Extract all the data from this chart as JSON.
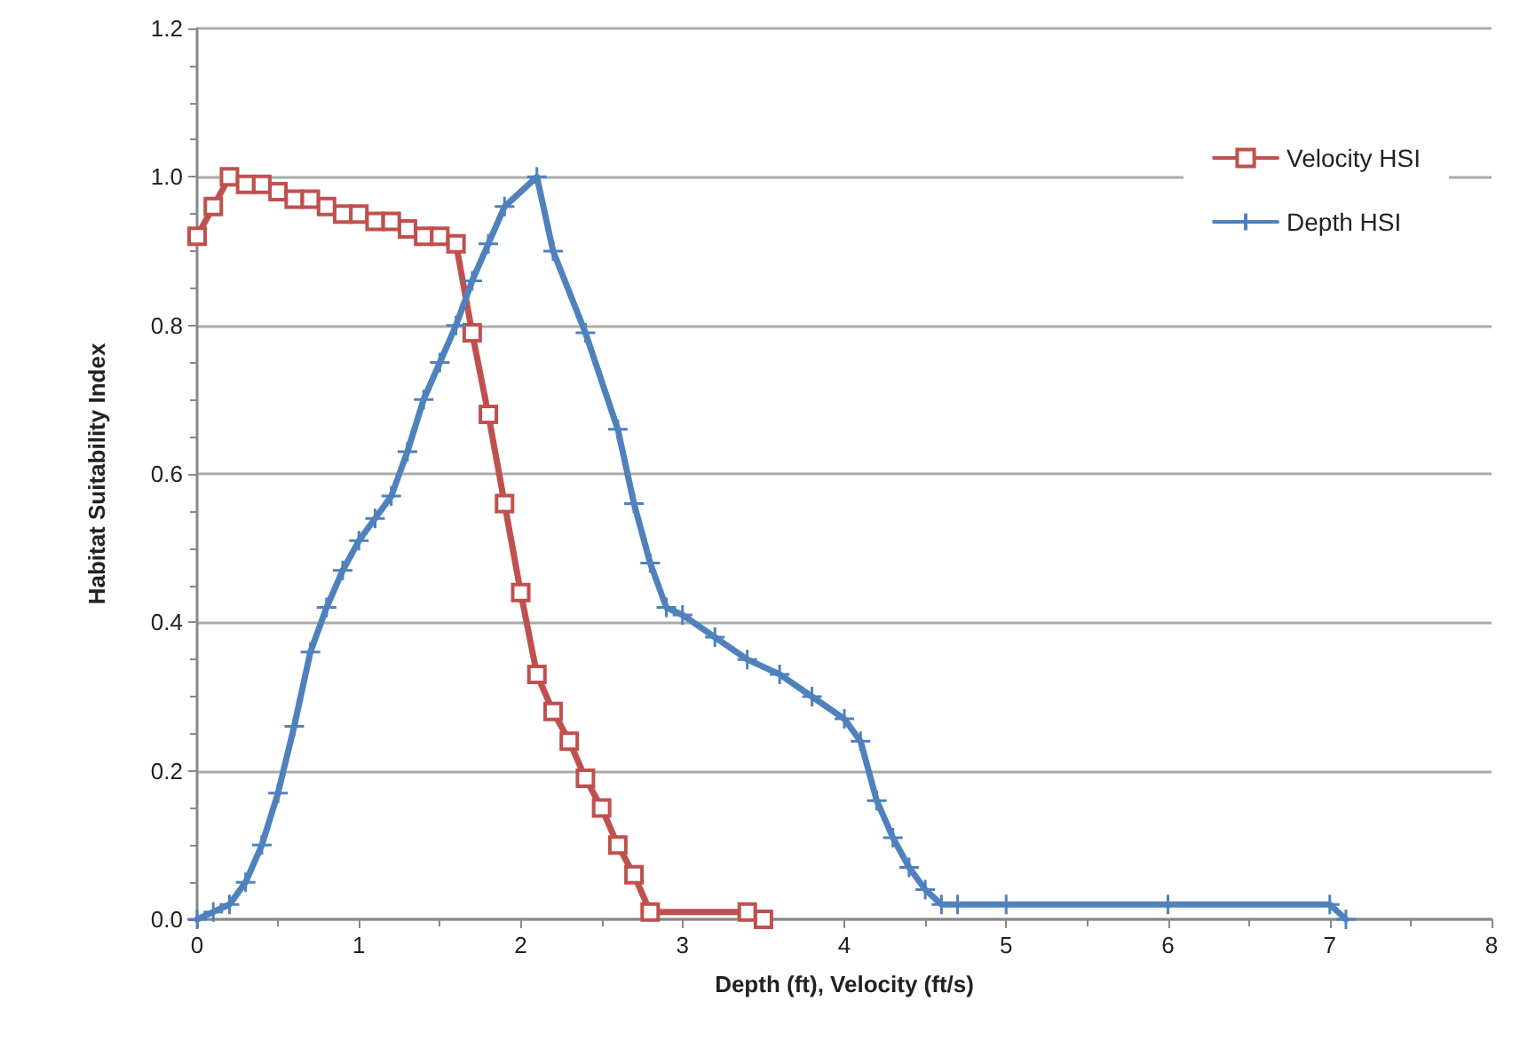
{
  "chart_data": {
    "type": "line",
    "xlabel": "Depth (ft), Velocity (ft/s)",
    "ylabel": "Habitat Suitability Index",
    "xlim": [
      0,
      8
    ],
    "xticks": [
      0,
      1,
      2,
      3,
      4,
      5,
      6,
      7,
      8
    ],
    "ylim": [
      0,
      1.2
    ],
    "yticks": [
      {
        "value": 0,
        "label": "0.0"
      },
      {
        "value": 0.2,
        "label": "0.2"
      },
      {
        "value": 0.4,
        "label": "0.4"
      },
      {
        "value": 0.6,
        "label": "0.6"
      },
      {
        "value": 0.8,
        "label": "0.8"
      },
      {
        "value": 1,
        "label": "1.0"
      },
      {
        "value": 1.2,
        "label": "1.2"
      }
    ],
    "grid": "y",
    "legend": "top right",
    "line_style": "solid",
    "series": [
      {
        "name": "Velocity HSI",
        "color": "#c0504d",
        "marker": "square",
        "x": [
          0,
          0.1,
          0.2,
          0.3,
          0.4,
          0.5,
          0.6,
          0.7,
          0.8,
          0.9,
          1.0,
          1.1,
          1.2,
          1.3,
          1.4,
          1.5,
          1.6,
          1.7,
          1.8,
          1.9,
          2.0,
          2.1,
          2.2,
          2.3,
          2.4,
          2.5,
          2.6,
          2.7,
          2.8,
          3.4,
          3.5
        ],
        "values": [
          0.92,
          0.96,
          1.0,
          0.99,
          0.99,
          0.98,
          0.97,
          0.97,
          0.96,
          0.95,
          0.95,
          0.94,
          0.94,
          0.93,
          0.92,
          0.92,
          0.91,
          0.79,
          0.68,
          0.56,
          0.44,
          0.33,
          0.28,
          0.24,
          0.19,
          0.15,
          0.1,
          0.06,
          0.01,
          0.01,
          0.0
        ]
      },
      {
        "name": "Depth HSI",
        "color": "#4f81bd",
        "marker": "cross",
        "x": [
          0,
          0.1,
          0.2,
          0.3,
          0.4,
          0.5,
          0.6,
          0.7,
          0.8,
          0.9,
          1.0,
          1.1,
          1.2,
          1.3,
          1.4,
          1.5,
          1.6,
          1.7,
          1.8,
          1.9,
          2.1,
          2.2,
          2.4,
          2.6,
          2.7,
          2.8,
          2.9,
          3.0,
          3.2,
          3.4,
          3.6,
          3.8,
          4.0,
          4.1,
          4.2,
          4.3,
          4.4,
          4.5,
          4.6,
          4.7,
          5.0,
          6.0,
          7.0,
          7.1
        ],
        "values": [
          0,
          0.01,
          0.02,
          0.05,
          0.1,
          0.17,
          0.26,
          0.36,
          0.42,
          0.47,
          0.51,
          0.54,
          0.57,
          0.63,
          0.7,
          0.75,
          0.8,
          0.86,
          0.91,
          0.96,
          1.0,
          0.9,
          0.79,
          0.66,
          0.56,
          0.48,
          0.42,
          0.41,
          0.38,
          0.35,
          0.33,
          0.3,
          0.27,
          0.24,
          0.16,
          0.11,
          0.07,
          0.04,
          0.02,
          0.02,
          0.02,
          0.02,
          0.02,
          0.0
        ]
      }
    ]
  }
}
